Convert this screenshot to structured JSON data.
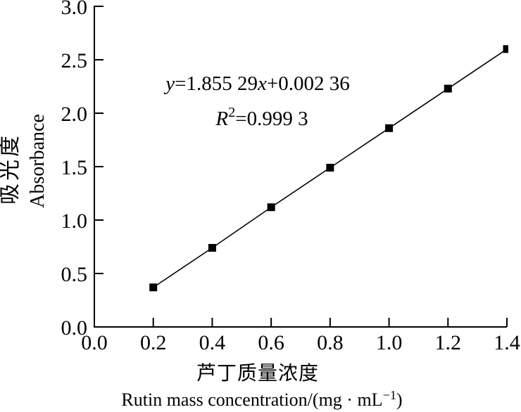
{
  "chart_data": {
    "type": "scatter",
    "title": "",
    "xlabel_zh": "芦丁质量浓度",
    "xlabel_en": {
      "text": "Rutin mass concentration/(mg · mL−1)",
      "parts": [
        {
          "t": "Rutin mass concentration/(mg · mL"
        },
        {
          "t": "−1",
          "sup": true
        },
        {
          "t": ")"
        }
      ]
    },
    "ylabel_zh": "吸光度",
    "ylabel_en": "Absorbance",
    "xlim": [
      0.0,
      1.4
    ],
    "ylim": [
      0.0,
      3.0
    ],
    "x_ticks": [
      "0.0",
      "0.2",
      "0.4",
      "0.6",
      "0.8",
      "1.0",
      "1.2",
      "1.4"
    ],
    "y_ticks": [
      "0.0",
      "0.5",
      "1.0",
      "1.5",
      "2.0",
      "2.5",
      "3.0"
    ],
    "grid": false,
    "legend": "none",
    "series": [
      {
        "name": "rutin standard curve points",
        "marker": "black-filled-square",
        "x": [
          0.2,
          0.4,
          0.6,
          0.8,
          1.0,
          1.2,
          1.4
        ],
        "y": [
          0.37,
          0.74,
          1.12,
          1.49,
          1.86,
          2.23,
          2.6
        ]
      }
    ],
    "fit_line": {
      "slope": 1.85529,
      "intercept": 0.00236,
      "x_start": 0.2,
      "x_end": 1.4
    },
    "annotations": [
      {
        "id": "equation",
        "text": "y=1.855 29x+0.002 36",
        "parts": [
          {
            "t": "y",
            "italic": true
          },
          {
            "t": "=1.855 29"
          },
          {
            "t": "x",
            "italic": true
          },
          {
            "t": "+0.002 36"
          }
        ]
      },
      {
        "id": "r-squared",
        "text": "R²=0.999 3",
        "parts": [
          {
            "t": "R",
            "italic": true
          },
          {
            "t": "2",
            "sup": true
          },
          {
            "t": "=0.999 3"
          }
        ]
      }
    ],
    "colors": {
      "axis": "#000000",
      "marker": "#000000",
      "line": "#000000",
      "background": "#ffffff"
    }
  }
}
